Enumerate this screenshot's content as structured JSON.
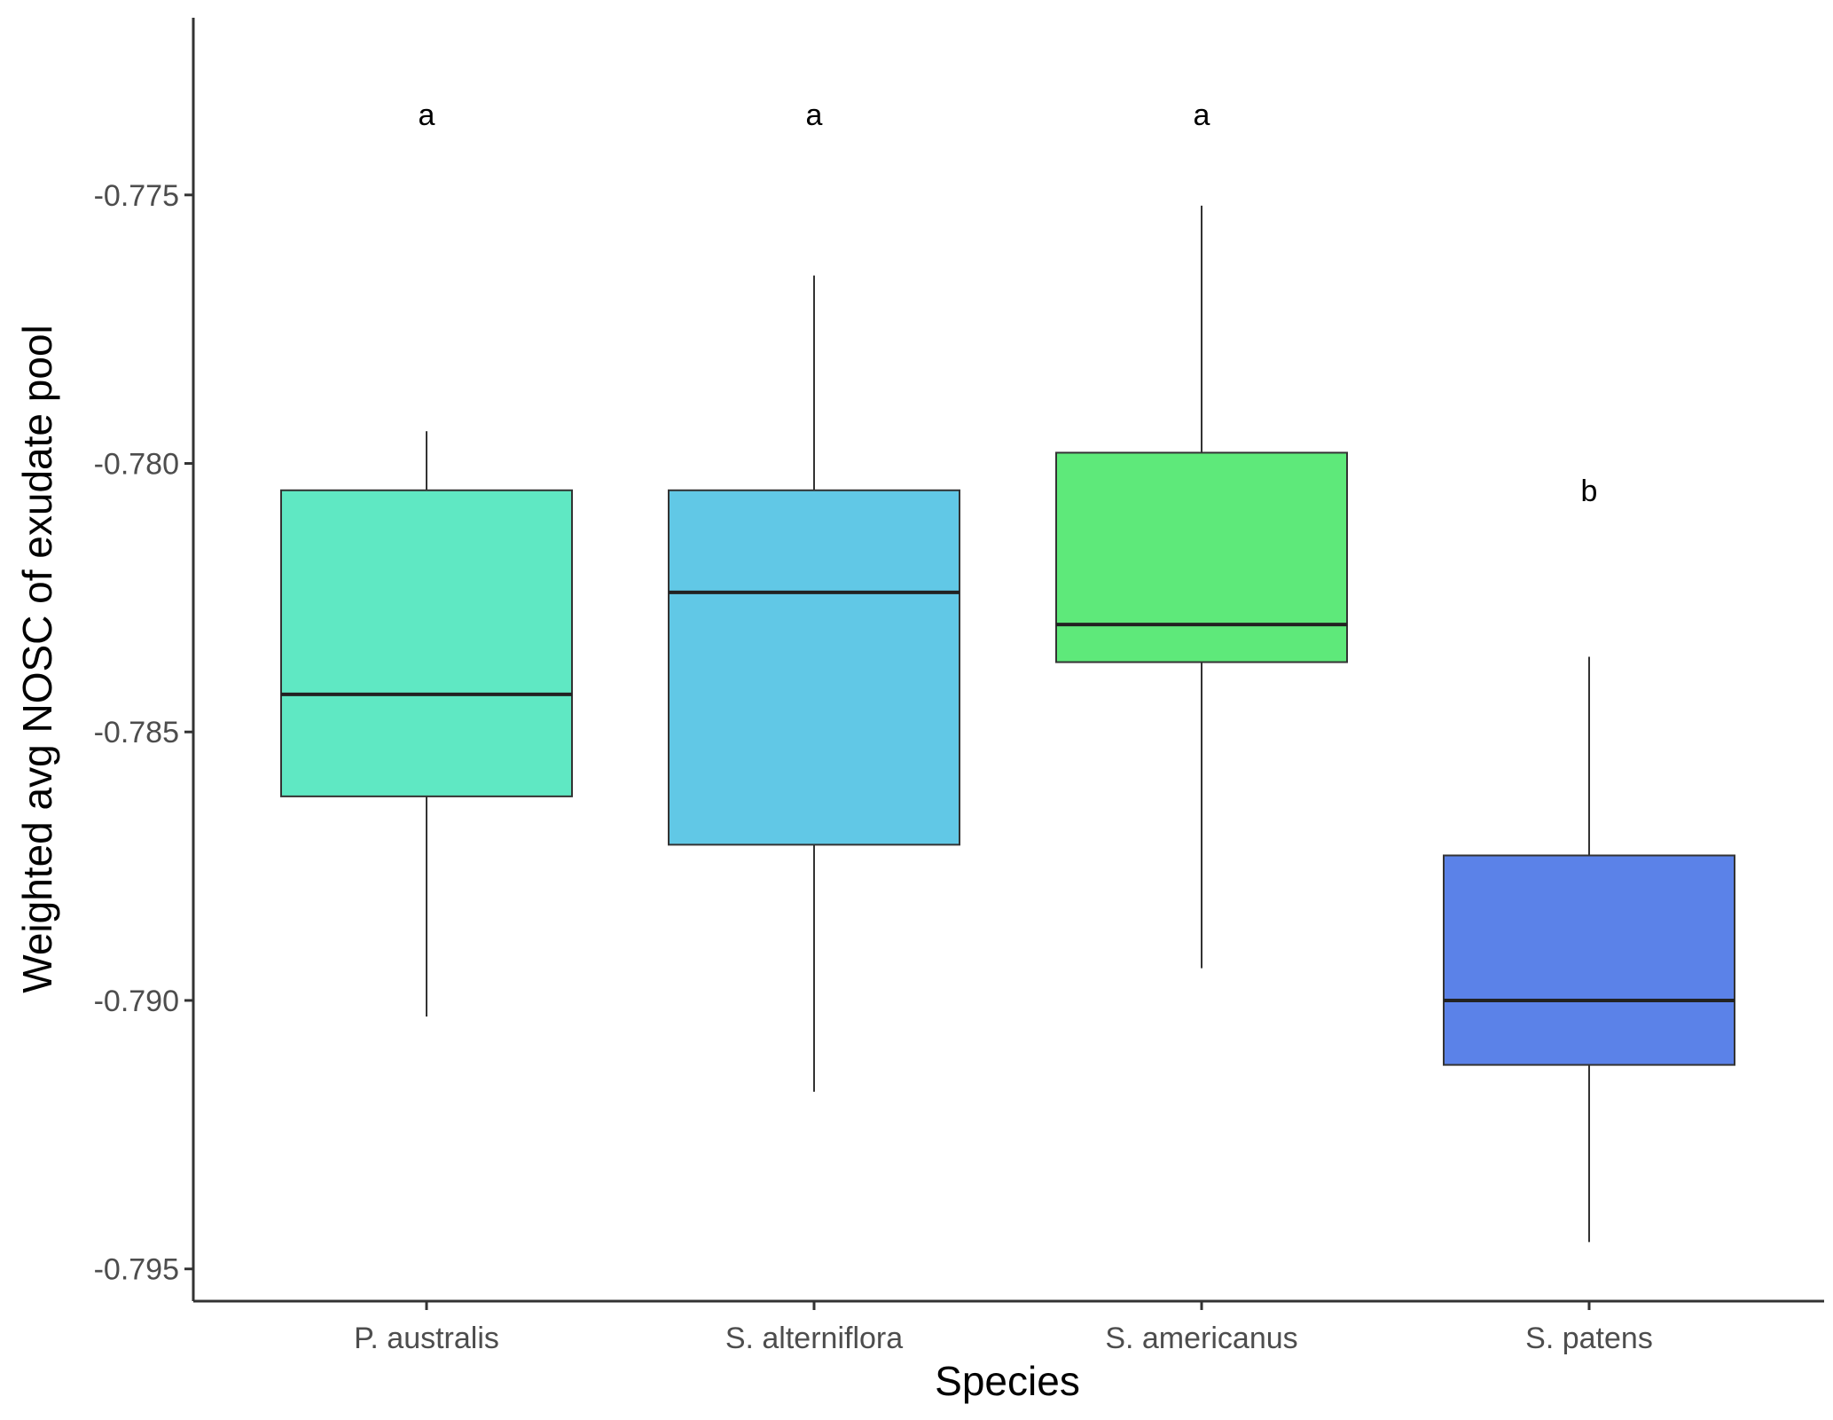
{
  "chart_data": {
    "type": "box",
    "xlabel": "Species",
    "ylabel": "Weighted avg NOSC of exudate pool",
    "ylim": [
      -0.7956,
      -0.7717
    ],
    "yticks": [
      -0.775,
      -0.78,
      -0.785,
      -0.79,
      -0.795
    ],
    "ytick_labels": [
      "-0.775",
      "-0.780",
      "-0.785",
      "-0.790",
      "-0.795"
    ],
    "grid": false,
    "legend": "none",
    "categories": [
      "P. australis",
      "S. alterniflora",
      "S. americanus",
      "S. patens"
    ],
    "boxes": [
      {
        "category": "P. australis",
        "whisker_low": -0.7903,
        "q1": -0.7862,
        "median": -0.7843,
        "q3": -0.7805,
        "whisker_high": -0.7794,
        "color": "#5fe8c3",
        "significance": "a"
      },
      {
        "category": "S. alterniflora",
        "whisker_low": -0.7917,
        "q1": -0.7871,
        "median": -0.7824,
        "q3": -0.7805,
        "whisker_high": -0.7765,
        "color": "#61c8e6",
        "significance": "a"
      },
      {
        "category": "S. americanus",
        "whisker_low": -0.7894,
        "q1": -0.7837,
        "median": -0.783,
        "q3": -0.7798,
        "whisker_high": -0.7752,
        "color": "#5ee97a",
        "significance": "a"
      },
      {
        "category": "S. patens",
        "whisker_low": -0.7945,
        "q1": -0.7912,
        "median": -0.79,
        "q3": -0.7873,
        "whisker_high": -0.7836,
        "color": "#5b82e8",
        "significance": "b"
      }
    ],
    "significance_y": [
      -0.7735,
      -0.7735,
      -0.7735,
      -0.7805
    ]
  }
}
